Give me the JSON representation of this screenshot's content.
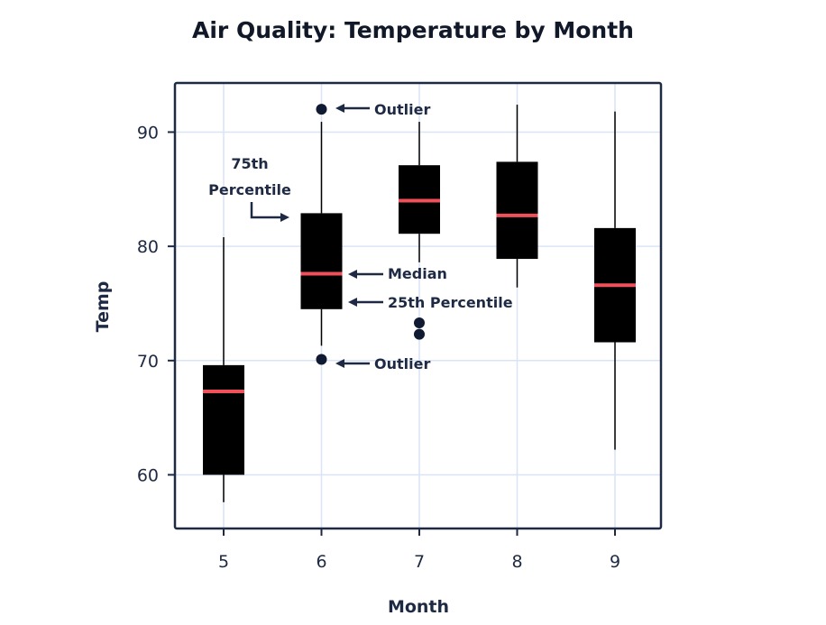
{
  "chart_data": {
    "type": "box",
    "title": "Air Quality: Temperature by Month",
    "xlabel": "Month",
    "ylabel": "Temp",
    "categories": [
      "5",
      "6",
      "7",
      "8",
      "9"
    ],
    "yticks": [
      60,
      70,
      80,
      90
    ],
    "ylim": [
      55.3,
      94.3
    ],
    "grid": true,
    "boxes": [
      {
        "category": "5",
        "whisker_low": 57.6,
        "q1": 60.0,
        "median": 67.3,
        "q3": 69.6,
        "whisker_high": 80.8,
        "outliers": []
      },
      {
        "category": "6",
        "whisker_low": 71.3,
        "q1": 74.5,
        "median": 77.6,
        "q3": 82.9,
        "whisker_high": 90.9,
        "outliers": [
          92.0,
          70.1
        ]
      },
      {
        "category": "7",
        "whisker_low": 78.6,
        "q1": 81.1,
        "median": 84.0,
        "q3": 87.1,
        "whisker_high": 90.9,
        "outliers": [
          73.3,
          72.3
        ]
      },
      {
        "category": "8",
        "whisker_low": 76.4,
        "q1": 78.9,
        "median": 82.7,
        "q3": 87.4,
        "whisker_high": 92.4,
        "outliers": []
      },
      {
        "category": "9",
        "whisker_low": 62.2,
        "q1": 71.6,
        "median": 76.6,
        "q3": 81.6,
        "whisker_high": 91.8,
        "outliers": []
      }
    ],
    "annotations": {
      "outlier_top": "Outlier",
      "percentile75_line1": "75th",
      "percentile75_line2": "Percentile",
      "median": "Median",
      "percentile25": "25th Percentile",
      "outlier_bottom": "Outlier"
    },
    "colors": {
      "box": "#000000",
      "median": "#f0505a",
      "outlier": "#111a33",
      "grid": "#d9e4f7",
      "frame": "#1e2a44"
    }
  }
}
